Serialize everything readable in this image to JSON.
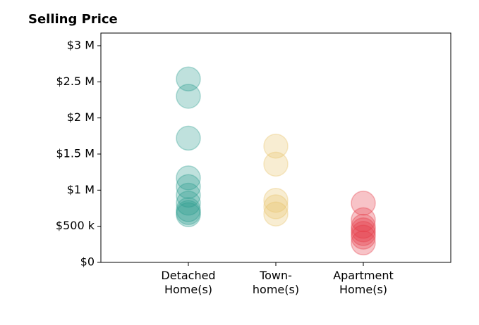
{
  "chart_data": {
    "type": "strip",
    "title": "Selling Price",
    "categories": [
      "Detached\nHome(s)",
      "Town-\nhome(s)",
      "Apartment\nHome(s)"
    ],
    "colors": [
      "#2a9d8f",
      "#e9c46a",
      "#e63946"
    ],
    "values": [
      [
        2.54,
        2.3,
        1.72,
        1.17,
        1.05,
        0.93,
        0.82,
        0.73,
        0.69,
        0.66
      ],
      [
        1.61,
        1.36,
        0.86,
        0.77,
        0.67
      ],
      [
        0.82,
        0.59,
        0.5,
        0.45,
        0.4,
        0.35,
        0.27
      ]
    ],
    "ylim": [
      0,
      3.175
    ],
    "yticks": [
      {
        "value": 0,
        "label": "$0"
      },
      {
        "value": 0.5,
        "label": "$500 k"
      },
      {
        "value": 1,
        "label": "$1 M"
      },
      {
        "value": 1.5,
        "label": "$1.5 M"
      },
      {
        "value": 2,
        "label": "$2 M"
      },
      {
        "value": 2.5,
        "label": "$2.5 M"
      },
      {
        "value": 3,
        "label": "$3 M"
      }
    ]
  }
}
